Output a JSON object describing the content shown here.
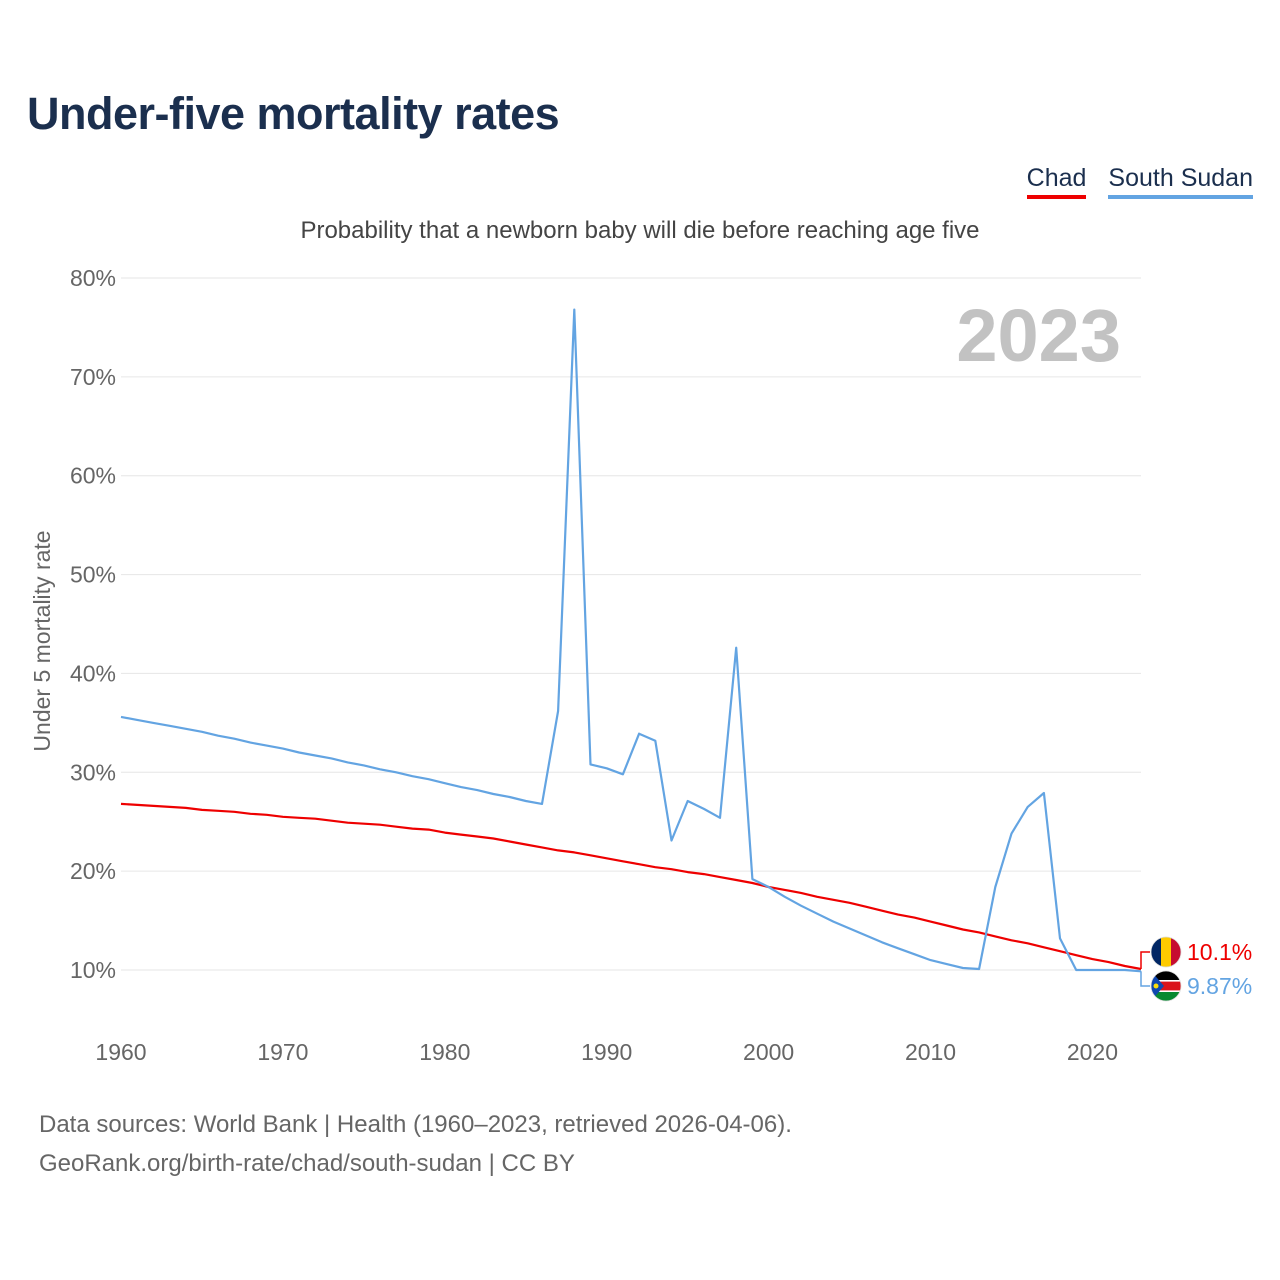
{
  "title": "Under-five mortality rates",
  "subtitle": "Probability that a newborn baby will die before reaching age five",
  "legend": [
    {
      "label": "Chad",
      "color": "#ee0000"
    },
    {
      "label": "South Sudan",
      "color": "#63a4e2"
    }
  ],
  "footer": {
    "line1": "Data sources: World Bank | Health (1960–2023, retrieved 2026-04-06).",
    "line2": "GeoRank.org/birth-rate/chad/south-sudan | CC BY"
  },
  "chart_data": {
    "type": "line",
    "title": "Under-five mortality rates",
    "subtitle": "Probability that a newborn baby will die before reaching age five",
    "ylabel": "Under 5 mortality rate",
    "xlabel": "",
    "year_watermark": "2023",
    "xlim": [
      1960,
      2023
    ],
    "ylim": [
      10,
      80
    ],
    "x_ticks": [
      1960,
      1970,
      1980,
      1990,
      2000,
      2010,
      2020
    ],
    "y_ticks": [
      10,
      20,
      30,
      40,
      50,
      60,
      70,
      80
    ],
    "y_tick_labels": [
      "10%",
      "20%",
      "30%",
      "40%",
      "50%",
      "60%",
      "70%",
      "80%"
    ],
    "grid": true,
    "legend_position": "top-right",
    "x": [
      1960,
      1961,
      1962,
      1963,
      1964,
      1965,
      1966,
      1967,
      1968,
      1969,
      1970,
      1971,
      1972,
      1973,
      1974,
      1975,
      1976,
      1977,
      1978,
      1979,
      1980,
      1981,
      1982,
      1983,
      1984,
      1985,
      1986,
      1987,
      1988,
      1989,
      1990,
      1991,
      1992,
      1993,
      1994,
      1995,
      1996,
      1997,
      1998,
      1999,
      2000,
      2001,
      2002,
      2003,
      2004,
      2005,
      2006,
      2007,
      2008,
      2009,
      2010,
      2011,
      2012,
      2013,
      2014,
      2015,
      2016,
      2017,
      2018,
      2019,
      2020,
      2021,
      2022,
      2023
    ],
    "series": [
      {
        "name": "Chad",
        "color": "#ee0000",
        "end_label": "10.1%",
        "flag": "chad-flag-icon",
        "values": [
          26.8,
          26.7,
          26.6,
          26.5,
          26.4,
          26.2,
          26.1,
          26.0,
          25.8,
          25.7,
          25.5,
          25.4,
          25.3,
          25.1,
          24.9,
          24.8,
          24.7,
          24.5,
          24.3,
          24.2,
          23.9,
          23.7,
          23.5,
          23.3,
          23.0,
          22.7,
          22.4,
          22.1,
          21.9,
          21.6,
          21.3,
          21.0,
          20.7,
          20.4,
          20.2,
          19.9,
          19.7,
          19.4,
          19.1,
          18.8,
          18.4,
          18.1,
          17.8,
          17.4,
          17.1,
          16.8,
          16.4,
          16.0,
          15.6,
          15.3,
          14.9,
          14.5,
          14.1,
          13.8,
          13.4,
          13.0,
          12.7,
          12.3,
          11.9,
          11.5,
          11.1,
          10.8,
          10.4,
          10.1
        ]
      },
      {
        "name": "South Sudan",
        "color": "#63a4e2",
        "end_label": "9.87%",
        "flag": "south-sudan-flag-icon",
        "values": [
          35.6,
          35.3,
          35.0,
          34.7,
          34.4,
          34.1,
          33.7,
          33.4,
          33.0,
          32.7,
          32.4,
          32.0,
          31.7,
          31.4,
          31.0,
          30.7,
          30.3,
          30.0,
          29.6,
          29.3,
          28.9,
          28.5,
          28.2,
          27.8,
          27.5,
          27.1,
          26.8,
          36.2,
          76.8,
          30.8,
          30.4,
          29.8,
          33.9,
          33.2,
          23.1,
          27.1,
          26.3,
          25.4,
          42.6,
          19.2,
          18.4,
          17.4,
          16.5,
          15.7,
          14.9,
          14.2,
          13.5,
          12.8,
          12.2,
          11.6,
          11.0,
          10.6,
          10.2,
          10.1,
          18.4,
          23.8,
          26.5,
          27.9,
          13.2,
          10.0,
          10.0,
          10.0,
          10.0,
          9.87
        ]
      }
    ]
  }
}
